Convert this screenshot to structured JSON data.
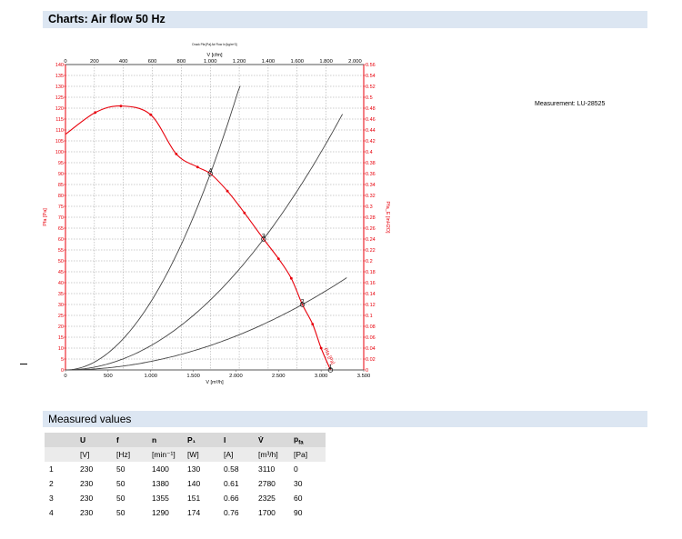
{
  "page": {
    "title": "Charts: Air flow 50 Hz",
    "measurement": "Measurement: LU-28525",
    "measured_title": "Measured values"
  },
  "chart_data": {
    "type": "line",
    "title": "",
    "chart_header": "Druck Pfa [Pa] Air Flow In [kg/m^3]",
    "xlabel": "V [m³/h]",
    "x2label": "V [cfm]",
    "ylabel": "Pfa [Pa]",
    "y2label": "Pfa_E [inH2O]",
    "xlim": [
      0,
      3500
    ],
    "ylim": [
      0,
      140
    ],
    "x_ticks": [
      "0",
      "500",
      "1.000",
      "1.500",
      "2.000",
      "2.500",
      "3.000",
      "3.500"
    ],
    "x2_ticks": [
      "0",
      "200",
      "400",
      "600",
      "800",
      "1.000",
      "1.200",
      "1.400",
      "1.600",
      "1.800",
      "2.000"
    ],
    "y_ticks": [
      "0",
      "5",
      "10",
      "15",
      "20",
      "25",
      "30",
      "35",
      "40",
      "45",
      "50",
      "55",
      "60",
      "65",
      "70",
      "75",
      "80",
      "85",
      "90",
      "95",
      "100",
      "105",
      "110",
      "115",
      "120",
      "125",
      "130",
      "135",
      "140"
    ],
    "y2_ticks": [
      "0",
      "0.02",
      "0.04",
      "0.06",
      "0.08",
      "0.1",
      "0.12",
      "0.14",
      "0.16",
      "0.18",
      "0.2",
      "0.22",
      "0.24",
      "0.26",
      "0.28",
      "0.3",
      "0.32",
      "0.34",
      "0.36",
      "0.38",
      "0.4",
      "0.42",
      "0.44",
      "0.46",
      "0.48",
      "0.5",
      "0.52",
      "0.54",
      "0.56"
    ],
    "grid": true,
    "curve_label": "Pfa [Pa]",
    "series": [
      {
        "color": "#e8000b",
        "x": [
          0,
          350,
          650,
          1000,
          1300,
          1550,
          1700,
          1900,
          2100,
          2325,
          2500,
          2650,
          2780,
          2900,
          3000,
          3110
        ],
        "y": [
          108,
          118,
          121,
          117,
          99,
          93,
          90,
          82,
          72,
          60,
          51,
          42,
          30,
          21,
          10,
          0
        ],
        "markers_x": [
          350,
          650,
          1000,
          1300,
          1550,
          1900,
          2100,
          2500,
          2650,
          2900,
          3000
        ],
        "markers_y": [
          118,
          121,
          117,
          99,
          93,
          82,
          72,
          51,
          42,
          21,
          10
        ]
      },
      {
        "color": "#444444",
        "k": 3.114e-05,
        "xmax": 2050
      },
      {
        "color": "#444444",
        "k": 1.11e-05,
        "xmax": 3250
      },
      {
        "color": "#444444",
        "k": 3.882e-06,
        "xmax": 3300
      }
    ],
    "operating_points": [
      {
        "label": "1",
        "x": 3110,
        "y": 0
      },
      {
        "label": "2",
        "x": 2780,
        "y": 30
      },
      {
        "label": "3",
        "x": 2325,
        "y": 60
      },
      {
        "label": "4",
        "x": 1700,
        "y": 90
      }
    ]
  },
  "table": {
    "headers": [
      "",
      "U",
      "f",
      "n",
      "P₁",
      "I",
      "V̇",
      "p_fa"
    ],
    "units": [
      "",
      "[V]",
      "[Hz]",
      "[min⁻¹]",
      "[W]",
      "[A]",
      "[m³/h]",
      "[Pa]"
    ],
    "rows": [
      [
        "1",
        "230",
        "50",
        "1400",
        "130",
        "0.58",
        "3110",
        "0"
      ],
      [
        "2",
        "230",
        "50",
        "1380",
        "140",
        "0.61",
        "2780",
        "30"
      ],
      [
        "3",
        "230",
        "50",
        "1355",
        "151",
        "0.66",
        "2325",
        "60"
      ],
      [
        "4",
        "230",
        "50",
        "1290",
        "174",
        "0.76",
        "1700",
        "90"
      ]
    ]
  }
}
